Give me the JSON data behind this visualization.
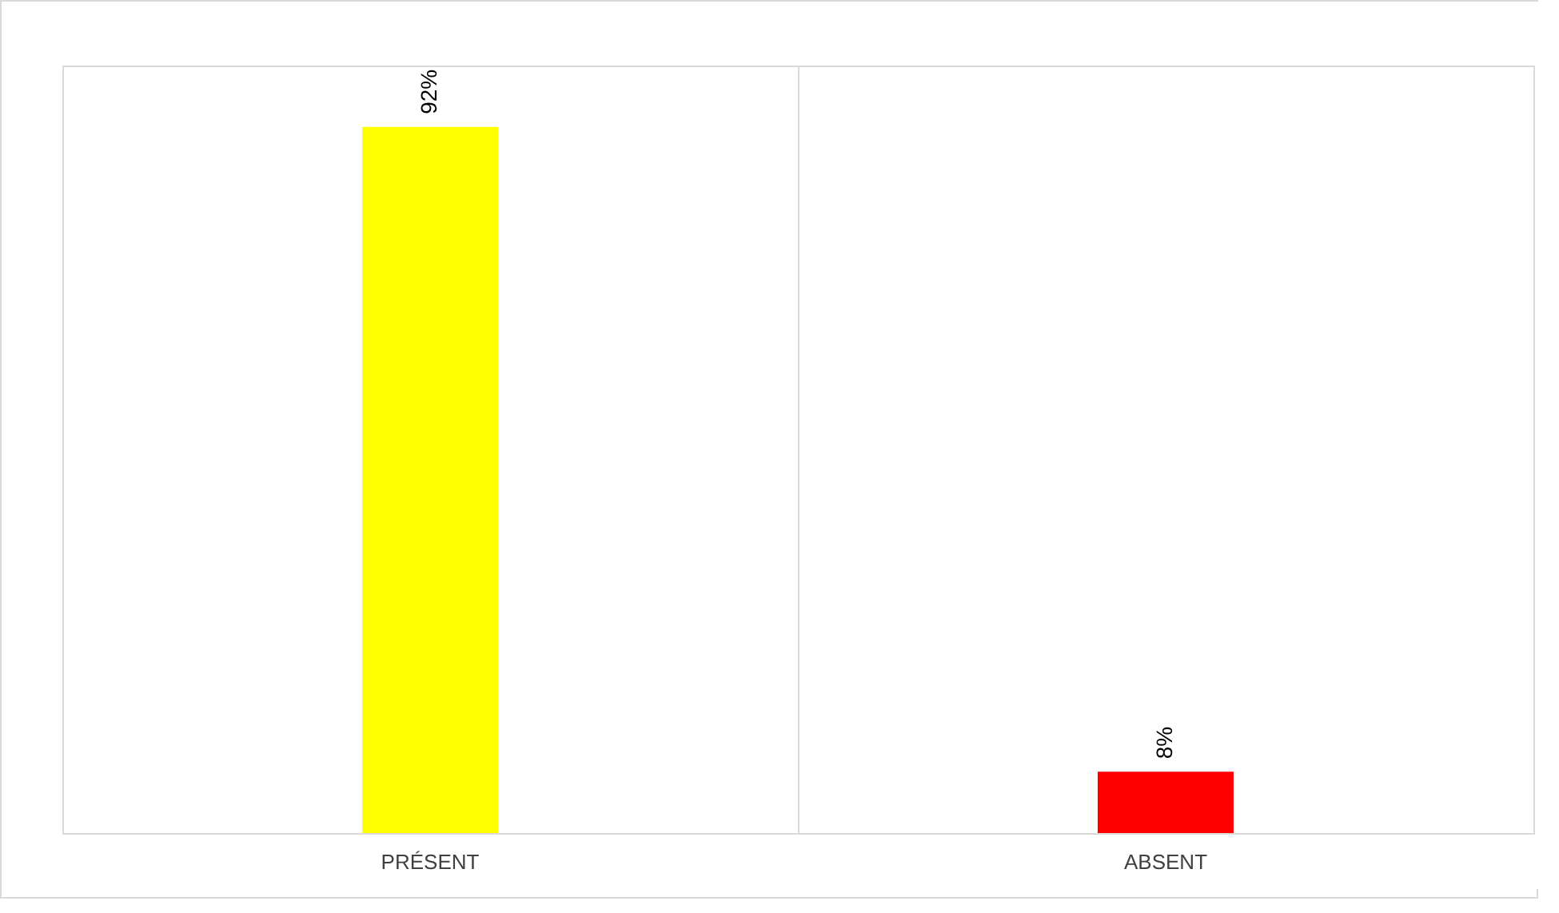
{
  "chart_data": {
    "type": "bar",
    "categories": [
      "PRÉSENT",
      "ABSENT"
    ],
    "values": [
      92,
      8
    ],
    "colors": [
      "#ffff00",
      "#ff0000"
    ],
    "value_labels": [
      "92%",
      "8%"
    ],
    "grid": "x"
  }
}
